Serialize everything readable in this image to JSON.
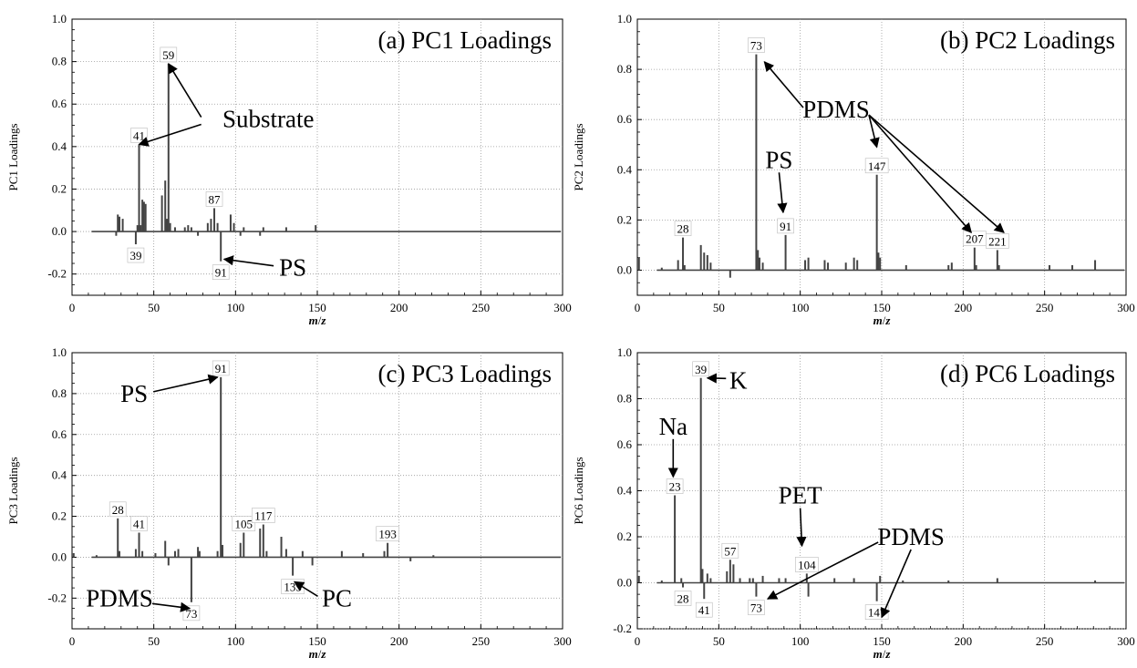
{
  "chart_data": [
    {
      "type": "bar",
      "title": "(a) PC1 Loadings",
      "xlabel": "m/z",
      "ylabel": "PC1 Loadings",
      "xlim": [
        0,
        300
      ],
      "ylim": [
        -0.3,
        1.0
      ],
      "xticks": [
        "0",
        "50",
        "100",
        "150",
        "200",
        "250",
        "300"
      ],
      "yticks": [
        "-0.2",
        "0.0",
        "0.2",
        "0.4",
        "0.6",
        "0.8",
        "1.0"
      ],
      "grid": true,
      "peaks": [
        {
          "x": 27,
          "y": -0.02
        },
        {
          "x": 28,
          "y": 0.08
        },
        {
          "x": 29,
          "y": 0.07
        },
        {
          "x": 31,
          "y": 0.06
        },
        {
          "x": 39,
          "y": -0.06
        },
        {
          "x": 40,
          "y": 0.03
        },
        {
          "x": 41,
          "y": 0.41
        },
        {
          "x": 42,
          "y": 0.03
        },
        {
          "x": 43,
          "y": 0.15
        },
        {
          "x": 44,
          "y": 0.14
        },
        {
          "x": 45,
          "y": 0.13
        },
        {
          "x": 55,
          "y": 0.17
        },
        {
          "x": 57,
          "y": 0.24
        },
        {
          "x": 58,
          "y": 0.06
        },
        {
          "x": 59,
          "y": 0.79
        },
        {
          "x": 60,
          "y": 0.04
        },
        {
          "x": 63,
          "y": 0.02
        },
        {
          "x": 69,
          "y": 0.02
        },
        {
          "x": 71,
          "y": 0.03
        },
        {
          "x": 73,
          "y": 0.02
        },
        {
          "x": 77,
          "y": -0.02
        },
        {
          "x": 83,
          "y": 0.04
        },
        {
          "x": 85,
          "y": 0.06
        },
        {
          "x": 87,
          "y": 0.11
        },
        {
          "x": 89,
          "y": 0.04
        },
        {
          "x": 91,
          "y": -0.14
        },
        {
          "x": 97,
          "y": 0.08
        },
        {
          "x": 99,
          "y": 0.04
        },
        {
          "x": 103,
          "y": -0.02
        },
        {
          "x": 105,
          "y": 0.02
        },
        {
          "x": 115,
          "y": -0.02
        },
        {
          "x": 117,
          "y": 0.02
        },
        {
          "x": 131,
          "y": 0.02
        },
        {
          "x": 149,
          "y": 0.03
        }
      ],
      "labels": [
        {
          "text": "59",
          "x": 59,
          "y": 0.79,
          "pos": "above"
        },
        {
          "text": "41",
          "x": 41,
          "y": 0.41,
          "pos": "above"
        },
        {
          "text": "87",
          "x": 87,
          "y": 0.11,
          "pos": "above"
        },
        {
          "text": "39",
          "x": 39,
          "y": -0.06,
          "pos": "below"
        },
        {
          "text": "91",
          "x": 91,
          "y": -0.14,
          "pos": "below"
        }
      ],
      "annotations": [
        {
          "text": "Substrate",
          "tx": 120,
          "ty": 0.53,
          "arrows": [
            [
              59,
              0.79
            ],
            [
              41,
              0.41
            ]
          ]
        },
        {
          "text": "PS",
          "tx": 135,
          "ty": -0.17,
          "arrows": [
            [
              93,
              -0.13
            ]
          ]
        }
      ]
    },
    {
      "type": "bar",
      "title": "(b) PC2 Loadings",
      "xlabel": "m/z",
      "ylabel": "PC2 Loadings",
      "xlim": [
        0,
        300
      ],
      "ylim": [
        -0.1,
        1.0
      ],
      "xticks": [
        "0",
        "50",
        "100",
        "150",
        "200",
        "250",
        "300"
      ],
      "yticks": [
        "0.0",
        "0.2",
        "0.4",
        "0.6",
        "0.8",
        "1.0"
      ],
      "grid": true,
      "peaks": [
        {
          "x": 1,
          "y": 0.05
        },
        {
          "x": 15,
          "y": 0.01
        },
        {
          "x": 25,
          "y": 0.04
        },
        {
          "x": 28,
          "y": 0.13
        },
        {
          "x": 29,
          "y": 0.02
        },
        {
          "x": 39,
          "y": 0.1
        },
        {
          "x": 41,
          "y": 0.07
        },
        {
          "x": 43,
          "y": 0.06
        },
        {
          "x": 45,
          "y": 0.03
        },
        {
          "x": 57,
          "y": -0.03
        },
        {
          "x": 73,
          "y": 0.86
        },
        {
          "x": 74,
          "y": 0.08
        },
        {
          "x": 75,
          "y": 0.05
        },
        {
          "x": 77,
          "y": 0.03
        },
        {
          "x": 91,
          "y": 0.14
        },
        {
          "x": 103,
          "y": 0.04
        },
        {
          "x": 105,
          "y": 0.05
        },
        {
          "x": 115,
          "y": 0.04
        },
        {
          "x": 117,
          "y": 0.03
        },
        {
          "x": 128,
          "y": 0.03
        },
        {
          "x": 133,
          "y": 0.05
        },
        {
          "x": 135,
          "y": 0.04
        },
        {
          "x": 147,
          "y": 0.38
        },
        {
          "x": 148,
          "y": 0.07
        },
        {
          "x": 149,
          "y": 0.05
        },
        {
          "x": 165,
          "y": 0.02
        },
        {
          "x": 191,
          "y": 0.02
        },
        {
          "x": 193,
          "y": 0.03
        },
        {
          "x": 207,
          "y": 0.09
        },
        {
          "x": 208,
          "y": 0.02
        },
        {
          "x": 221,
          "y": 0.08
        },
        {
          "x": 222,
          "y": 0.02
        },
        {
          "x": 253,
          "y": 0.02
        },
        {
          "x": 267,
          "y": 0.02
        },
        {
          "x": 281,
          "y": 0.04
        }
      ],
      "labels": [
        {
          "text": "73",
          "x": 73,
          "y": 0.86,
          "pos": "above"
        },
        {
          "text": "147",
          "x": 147,
          "y": 0.38,
          "pos": "above"
        },
        {
          "text": "28",
          "x": 28,
          "y": 0.13,
          "pos": "above"
        },
        {
          "text": "91",
          "x": 91,
          "y": 0.14,
          "pos": "above"
        },
        {
          "text": "207",
          "x": 207,
          "y": 0.09,
          "pos": "above"
        },
        {
          "text": "221",
          "x": 221,
          "y": 0.08,
          "pos": "above"
        }
      ],
      "annotations": [
        {
          "text": "PDMS",
          "tx": 122,
          "ty": 0.64,
          "arrows": [
            [
              78,
              0.83
            ],
            [
              147,
              0.49
            ],
            [
              205,
              0.15
            ],
            [
              225,
              0.15
            ]
          ]
        },
        {
          "text": "PS",
          "tx": 87,
          "ty": 0.44,
          "arrows": [
            [
              89.5,
              0.23
            ]
          ]
        }
      ]
    },
    {
      "type": "bar",
      "title": "(c) PC3 Loadings",
      "xlabel": "m/z",
      "ylabel": "PC3 Loadings",
      "xlim": [
        0,
        300
      ],
      "ylim": [
        -0.35,
        1.0
      ],
      "xticks": [
        "0",
        "50",
        "100",
        "150",
        "200",
        "250",
        "300"
      ],
      "yticks": [
        "-0.2",
        "0.0",
        "0.2",
        "0.4",
        "0.6",
        "0.8",
        "1.0"
      ],
      "grid": true,
      "peaks": [
        {
          "x": 1,
          "y": 0.02
        },
        {
          "x": 15,
          "y": 0.01
        },
        {
          "x": 28,
          "y": 0.19
        },
        {
          "x": 29,
          "y": 0.03
        },
        {
          "x": 39,
          "y": 0.04
        },
        {
          "x": 41,
          "y": 0.12
        },
        {
          "x": 43,
          "y": 0.03
        },
        {
          "x": 51,
          "y": 0.02
        },
        {
          "x": 57,
          "y": 0.08
        },
        {
          "x": 59,
          "y": -0.04
        },
        {
          "x": 63,
          "y": 0.03
        },
        {
          "x": 65,
          "y": 0.04
        },
        {
          "x": 73,
          "y": -0.22
        },
        {
          "x": 77,
          "y": 0.05
        },
        {
          "x": 78,
          "y": 0.03
        },
        {
          "x": 89,
          "y": 0.03
        },
        {
          "x": 91,
          "y": 0.88
        },
        {
          "x": 92,
          "y": 0.06
        },
        {
          "x": 103,
          "y": 0.07
        },
        {
          "x": 105,
          "y": 0.12
        },
        {
          "x": 115,
          "y": 0.14
        },
        {
          "x": 117,
          "y": 0.16
        },
        {
          "x": 119,
          "y": 0.03
        },
        {
          "x": 128,
          "y": 0.1
        },
        {
          "x": 131,
          "y": 0.04
        },
        {
          "x": 135,
          "y": -0.09
        },
        {
          "x": 141,
          "y": 0.03
        },
        {
          "x": 147,
          "y": -0.04
        },
        {
          "x": 165,
          "y": 0.03
        },
        {
          "x": 178,
          "y": 0.02
        },
        {
          "x": 191,
          "y": 0.03
        },
        {
          "x": 193,
          "y": 0.07
        },
        {
          "x": 207,
          "y": -0.02
        },
        {
          "x": 221,
          "y": 0.01
        }
      ],
      "labels": [
        {
          "text": "91",
          "x": 91,
          "y": 0.88,
          "pos": "above"
        },
        {
          "text": "28",
          "x": 28,
          "y": 0.19,
          "pos": "above"
        },
        {
          "text": "41",
          "x": 41,
          "y": 0.12,
          "pos": "above"
        },
        {
          "text": "105",
          "x": 105,
          "y": 0.12,
          "pos": "above"
        },
        {
          "text": "117",
          "x": 117,
          "y": 0.16,
          "pos": "above"
        },
        {
          "text": "193",
          "x": 193,
          "y": 0.07,
          "pos": "above"
        },
        {
          "text": "73",
          "x": 73,
          "y": -0.22,
          "pos": "below"
        },
        {
          "text": "135",
          "x": 135,
          "y": -0.09,
          "pos": "below"
        }
      ],
      "annotations": [
        {
          "text": "PS",
          "tx": 38,
          "ty": 0.8,
          "arrows": [
            [
              89,
              0.88
            ]
          ]
        },
        {
          "text": "PDMS",
          "tx": 29,
          "ty": -0.2,
          "arrows": [
            [
              72,
              -0.25
            ]
          ]
        },
        {
          "text": "PC",
          "tx": 162,
          "ty": -0.2,
          "arrows": [
            [
              136,
              -0.12
            ]
          ]
        }
      ]
    },
    {
      "type": "bar",
      "title": "(d) PC6 Loadings",
      "xlabel": "m/z",
      "ylabel": "PC6 Loadings",
      "xlim": [
        0,
        300
      ],
      "ylim": [
        -0.2,
        1.0
      ],
      "xticks": [
        "0",
        "50",
        "100",
        "150",
        "200",
        "250",
        "300"
      ],
      "yticks": [
        "-0.2",
        "0.0",
        "0.2",
        "0.4",
        "0.6",
        "0.8",
        "1.0"
      ],
      "grid": true,
      "peaks": [
        {
          "x": 1,
          "y": 0.03
        },
        {
          "x": 15,
          "y": 0.01
        },
        {
          "x": 23,
          "y": 0.38
        },
        {
          "x": 27,
          "y": 0.02
        },
        {
          "x": 28,
          "y": -0.02
        },
        {
          "x": 39,
          "y": 0.89
        },
        {
          "x": 40,
          "y": 0.06
        },
        {
          "x": 41,
          "y": -0.07
        },
        {
          "x": 43,
          "y": 0.04
        },
        {
          "x": 45,
          "y": 0.02
        },
        {
          "x": 55,
          "y": 0.05
        },
        {
          "x": 57,
          "y": 0.1
        },
        {
          "x": 59,
          "y": 0.08
        },
        {
          "x": 63,
          "y": 0.02
        },
        {
          "x": 69,
          "y": 0.02
        },
        {
          "x": 71,
          "y": 0.02
        },
        {
          "x": 73,
          "y": -0.06
        },
        {
          "x": 77,
          "y": 0.03
        },
        {
          "x": 87,
          "y": 0.02
        },
        {
          "x": 91,
          "y": 0.02
        },
        {
          "x": 104,
          "y": 0.04
        },
        {
          "x": 105,
          "y": -0.06
        },
        {
          "x": 121,
          "y": 0.02
        },
        {
          "x": 133,
          "y": 0.02
        },
        {
          "x": 147,
          "y": -0.08
        },
        {
          "x": 149,
          "y": 0.03
        },
        {
          "x": 163,
          "y": 0.01
        },
        {
          "x": 191,
          "y": 0.01
        },
        {
          "x": 221,
          "y": 0.02
        },
        {
          "x": 281,
          "y": 0.01
        }
      ],
      "labels": [
        {
          "text": "39",
          "x": 39,
          "y": 0.89,
          "pos": "above"
        },
        {
          "text": "23",
          "x": 23,
          "y": 0.38,
          "pos": "above"
        },
        {
          "text": "57",
          "x": 57,
          "y": 0.1,
          "pos": "above"
        },
        {
          "text": "104",
          "x": 104,
          "y": 0.04,
          "pos": "above"
        },
        {
          "text": "28",
          "x": 28,
          "y": -0.02,
          "pos": "below"
        },
        {
          "text": "41",
          "x": 41,
          "y": -0.07,
          "pos": "below"
        },
        {
          "text": "73",
          "x": 73,
          "y": -0.06,
          "pos": "below"
        },
        {
          "text": "147",
          "x": 147,
          "y": -0.08,
          "pos": "below"
        }
      ],
      "annotations": [
        {
          "text": "K",
          "tx": 62,
          "ty": 0.88,
          "arrows": [
            [
              43,
              0.89
            ]
          ]
        },
        {
          "text": "Na",
          "tx": 22,
          "ty": 0.68,
          "arrows": [
            [
              22,
              0.46
            ]
          ]
        },
        {
          "text": "PET",
          "tx": 100,
          "ty": 0.38,
          "arrows": [
            [
              101,
              0.16
            ]
          ]
        },
        {
          "text": "PDMS",
          "tx": 168,
          "ty": 0.2,
          "arrows": [
            [
              80,
              -0.07
            ],
            [
              150,
              -0.15
            ]
          ]
        }
      ]
    }
  ]
}
